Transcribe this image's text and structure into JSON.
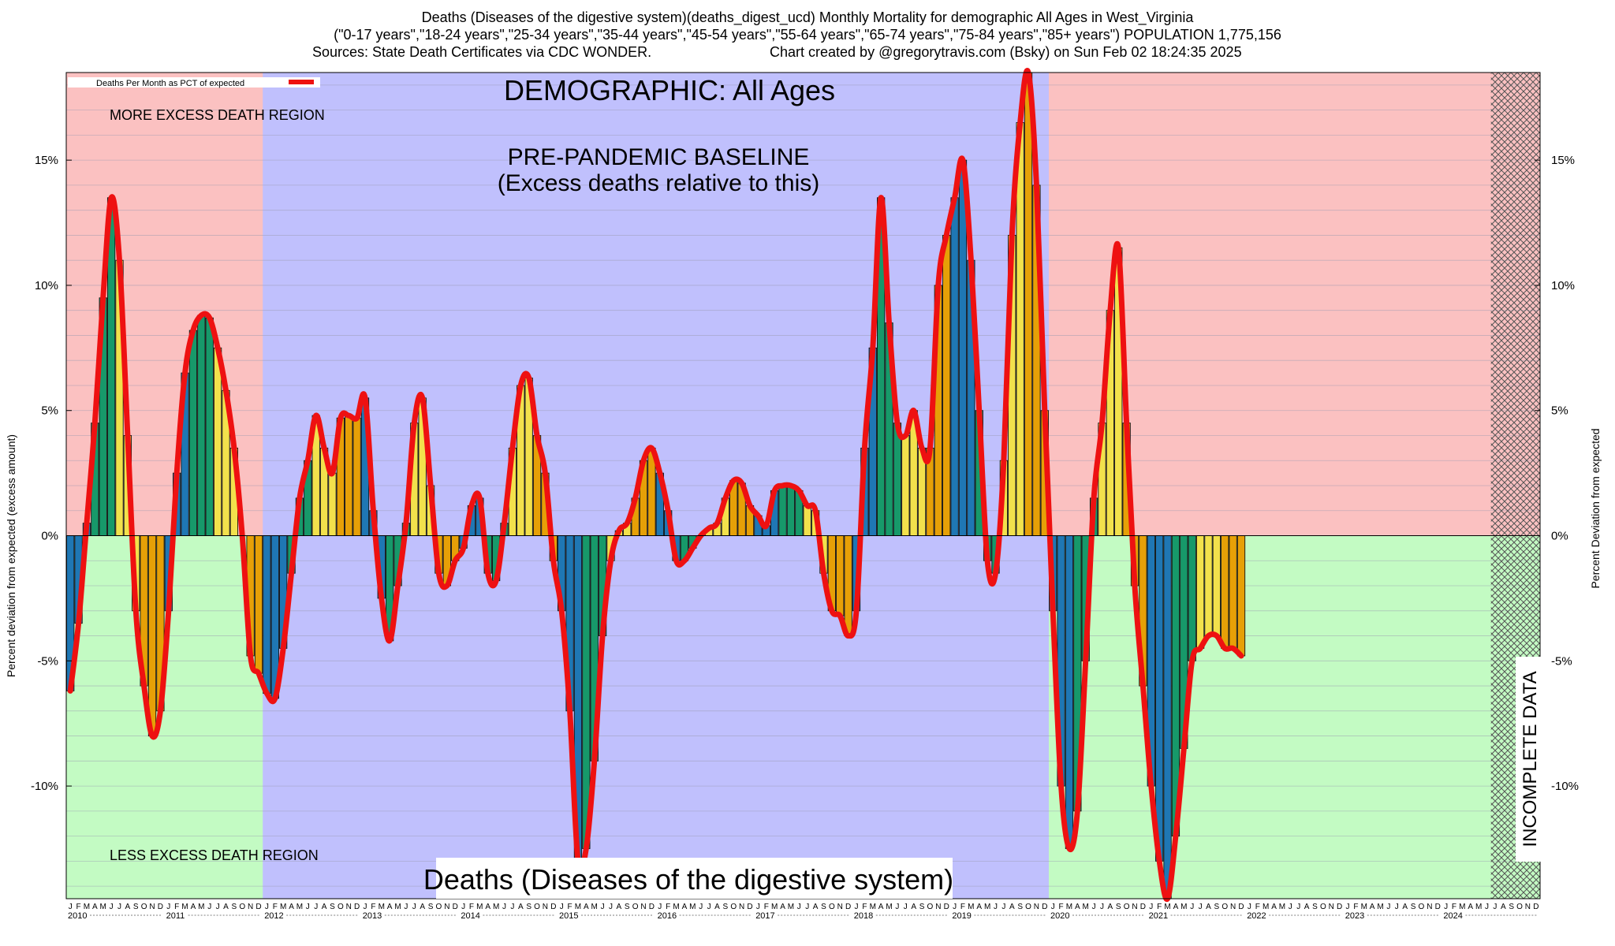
{
  "header": {
    "line1": "Deaths (Diseases of the digestive system)(deaths_digest_ucd) Monthly Mortality for demographic All Ages in West_Virginia",
    "line2": "(\"0-17 years\",\"18-24 years\",\"25-34 years\",\"35-44 years\",\"45-54 years\",\"55-64 years\",\"65-74 years\",\"75-84 years\",\"85+ years\") POPULATION 1,775,156",
    "line3_left": "Sources: State Death Certificates via CDC WONDER.",
    "line3_right": "Chart created by @gregorytravis.com (Bsky) on Sun Feb 02 18:24:35 2025"
  },
  "chart_data": {
    "type": "bar",
    "title": "DEMOGRAPHIC: All Ages",
    "subtitle": "Deaths (Diseases of the digestive system)",
    "ylabel": "Percent deviation from expected (excess amount)",
    "ylabel_right": "Percent Deviation from expected",
    "ylim": [
      -14.5,
      18.5
    ],
    "yticks": [
      15,
      10,
      5,
      0,
      -5,
      -10
    ],
    "ytick_labels": [
      "15%",
      "10%",
      "5%",
      "0%",
      "-5%",
      "-10%"
    ],
    "legend": {
      "label": "Deaths Per Month as PCT of expected",
      "position": "top-left"
    },
    "regions": {
      "more_excess_label": "MORE EXCESS DEATH REGION",
      "less_excess_label": "LESS EXCESS DEATH REGION",
      "baseline_title": "PRE-PANDEMIC BASELINE",
      "baseline_sub": "(Excess deaths relative to this)",
      "baseline_start": "2012-01",
      "baseline_end": "2019-12",
      "incomplete_label": "INCOMPLETE DATA",
      "incomplete_start": "2024-07"
    },
    "month_letters": [
      "J",
      "F",
      "M",
      "A",
      "M",
      "J",
      "J",
      "A",
      "S",
      "O",
      "N",
      "D"
    ],
    "years": [
      2010,
      2011,
      2012,
      2013,
      2014,
      2015,
      2016,
      2017,
      2018,
      2019,
      2020,
      2021,
      2022,
      2023,
      2024
    ],
    "start": "2010-01",
    "palette": [
      "#1f77b4",
      "#17996a",
      "#f2e14c",
      "#e6a007"
    ],
    "line_color": "#ee1111",
    "colors": {
      "excess_region": "#fbc1c1",
      "less_region": "#c3fbc3",
      "baseline_region": "#c0c0fd"
    },
    "values": [
      -6.2,
      -3.5,
      0.5,
      4.5,
      9.5,
      13.5,
      11.0,
      4.0,
      -3.0,
      -6.0,
      -8.0,
      -7.0,
      -3.0,
      2.5,
      6.5,
      8.2,
      8.8,
      8.7,
      7.5,
      5.8,
      3.5,
      0.0,
      -4.8,
      -5.5,
      -6.3,
      -6.5,
      -4.5,
      -1.5,
      1.5,
      3.0,
      4.8,
      3.5,
      2.5,
      4.7,
      4.8,
      4.7,
      5.5,
      1.0,
      -2.5,
      -4.2,
      -2.0,
      0.5,
      4.5,
      5.5,
      2.0,
      -1.5,
      -2.0,
      -1.0,
      -0.5,
      1.2,
      1.5,
      -1.5,
      -1.8,
      0.5,
      3.5,
      6.0,
      6.3,
      4.0,
      2.5,
      -1.0,
      -3.0,
      -7.0,
      -13.0,
      -12.5,
      -9.0,
      -4.0,
      -1.0,
      0.2,
      0.5,
      1.5,
      3.0,
      3.5,
      2.5,
      1.0,
      -1.0,
      -1.0,
      -0.5,
      0.0,
      0.3,
      0.5,
      1.5,
      2.2,
      2.1,
      1.2,
      0.8,
      0.4,
      1.8,
      2.0,
      2.0,
      1.8,
      1.2,
      1.0,
      -1.5,
      -3.0,
      -3.2,
      -4.0,
      -3.0,
      3.5,
      7.5,
      13.5,
      8.5,
      4.5,
      4.0,
      5.0,
      3.5,
      3.5,
      10.0,
      12.0,
      13.5,
      15.0,
      11.0,
      5.0,
      -1.0,
      -1.5,
      3.0,
      12.0,
      16.5,
      18.5,
      14.0,
      5.0,
      -3.0,
      -10.0,
      -12.5,
      -11.0,
      -5.0,
      1.5,
      4.5,
      9.0,
      11.5,
      4.5,
      -2.0,
      -6.0,
      -10.0,
      -13.0,
      -14.5,
      -12.0,
      -8.5,
      -5.0,
      -4.5,
      -4.0,
      -4.0,
      -4.5,
      -4.5,
      -4.8
    ]
  }
}
